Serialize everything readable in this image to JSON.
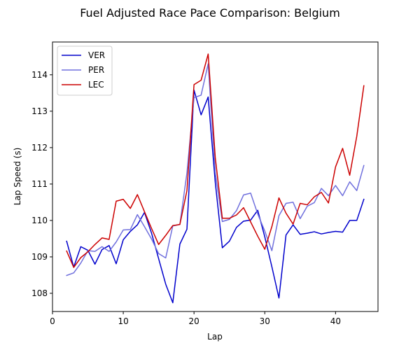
{
  "chart_data": {
    "type": "line",
    "title": "Fuel Adjusted Race Pace Comparison: Belgium",
    "xlabel": "Lap",
    "ylabel": "Lap Speed (s)",
    "xlim": [
      0,
      46
    ],
    "ylim": [
      107.5,
      114.9
    ],
    "xticks": [
      0,
      10,
      20,
      30,
      40
    ],
    "yticks": [
      108,
      109,
      110,
      111,
      112,
      113,
      114
    ],
    "grid": false,
    "legend_position": "top-left",
    "x": [
      2,
      3,
      4,
      5,
      6,
      7,
      8,
      9,
      10,
      11,
      12,
      13,
      14,
      15,
      16,
      17,
      18,
      19,
      20,
      21,
      22,
      23,
      24,
      25,
      26,
      27,
      28,
      29,
      30,
      31,
      32,
      33,
      34,
      35,
      36,
      37,
      38,
      39,
      40,
      41,
      42,
      43,
      44
    ],
    "series": [
      {
        "name": "VER",
        "color": "#0000cc",
        "values": [
          109.43,
          108.72,
          109.28,
          109.18,
          108.8,
          109.2,
          109.31,
          108.81,
          109.47,
          109.7,
          109.88,
          110.22,
          109.65,
          108.95,
          108.25,
          107.74,
          109.35,
          109.76,
          113.58,
          112.9,
          113.39,
          111.05,
          109.25,
          109.43,
          109.81,
          109.98,
          110.01,
          110.28,
          109.55,
          108.73,
          107.87,
          109.6,
          109.88,
          109.62,
          109.65,
          109.69,
          109.63,
          109.67,
          109.7,
          109.68,
          110.0,
          110.0,
          110.58
        ]
      },
      {
        "name": "PER",
        "color": "#7070dd",
        "values": [
          108.49,
          108.56,
          108.83,
          109.17,
          109.15,
          109.28,
          109.15,
          109.41,
          109.74,
          109.75,
          110.16,
          109.83,
          109.49,
          109.09,
          108.97,
          109.85,
          109.89,
          111.31,
          113.37,
          113.44,
          114.3,
          111.32,
          109.97,
          110.03,
          110.27,
          110.7,
          110.75,
          110.18,
          109.71,
          109.17,
          110.13,
          110.47,
          110.5,
          110.05,
          110.39,
          110.49,
          110.88,
          110.68,
          110.96,
          110.68,
          111.06,
          110.82,
          111.51
        ]
      },
      {
        "name": "LEC",
        "color": "#cc0000",
        "values": [
          109.16,
          108.71,
          108.98,
          109.14,
          109.34,
          109.52,
          109.48,
          110.53,
          110.58,
          110.33,
          110.71,
          110.24,
          109.78,
          109.34,
          109.59,
          109.86,
          109.89,
          110.82,
          113.73,
          113.85,
          114.57,
          111.73,
          110.06,
          110.06,
          110.15,
          110.35,
          109.96,
          109.57,
          109.21,
          109.83,
          110.62,
          110.2,
          109.9,
          110.47,
          110.43,
          110.65,
          110.77,
          110.48,
          111.47,
          111.98,
          111.24,
          112.31,
          113.7
        ]
      }
    ]
  }
}
